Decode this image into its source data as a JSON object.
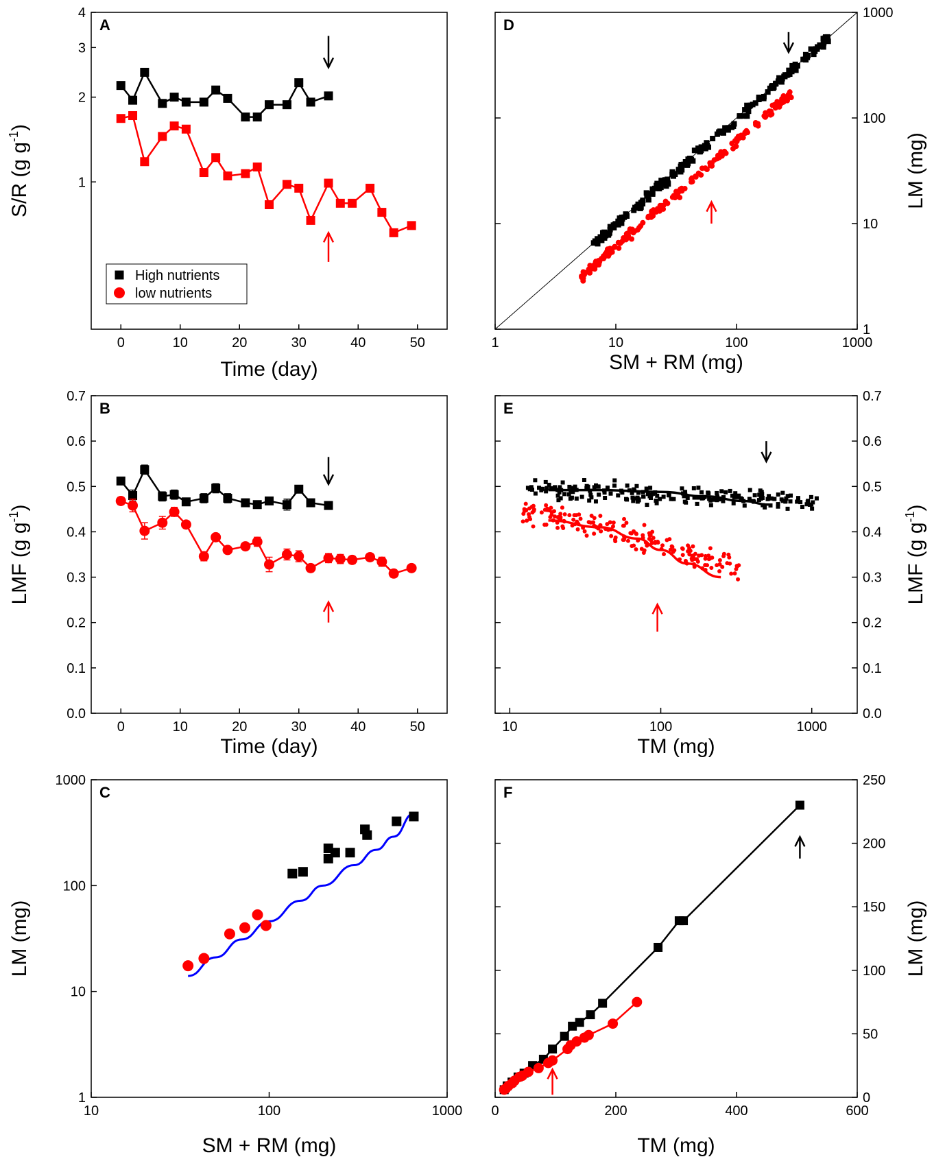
{
  "chart_data": [
    {
      "panel": "A",
      "type": "line",
      "xlabel": "Time (day)",
      "ylabel": "S/R (g g-1)",
      "xlim": [
        -5,
        55
      ],
      "ylim_log": [
        0.3,
        4
      ],
      "xticks": [
        0,
        10,
        20,
        30,
        40,
        50
      ],
      "yticks": [
        1,
        2,
        3,
        4
      ],
      "legend": {
        "position": "bottom-left",
        "entries": [
          "High nutrients",
          "low nutrients"
        ]
      },
      "series": [
        {
          "name": "High nutrients",
          "color": "#000000",
          "x": [
            0,
            2,
            4,
            7,
            9,
            11,
            14,
            16,
            18,
            21,
            23,
            25,
            28,
            30,
            32,
            35
          ],
          "y": [
            2.2,
            1.95,
            2.45,
            1.9,
            2.0,
            1.92,
            1.92,
            2.12,
            1.98,
            1.7,
            1.7,
            1.88,
            1.88,
            2.25,
            1.92,
            2.02
          ]
        },
        {
          "name": "low nutrients",
          "color": "#ff0000",
          "x": [
            0,
            2,
            4,
            7,
            9,
            11,
            14,
            16,
            18,
            21,
            23,
            25,
            28,
            30,
            32,
            35,
            37,
            39,
            42,
            44,
            46,
            49
          ],
          "y": [
            1.68,
            1.72,
            1.18,
            1.45,
            1.58,
            1.54,
            1.08,
            1.22,
            1.05,
            1.07,
            1.13,
            0.83,
            0.98,
            0.95,
            0.73,
            0.99,
            0.84,
            0.84,
            0.95,
            0.78,
            0.66,
            0.7
          ]
        }
      ],
      "arrows": [
        {
          "x": 35,
          "y_from": 3.3,
          "y_to": 2.55,
          "color": "#000000"
        },
        {
          "x": 35,
          "y_from": 0.52,
          "y_to": 0.66,
          "color": "#ff0000"
        }
      ]
    },
    {
      "panel": "B",
      "type": "line",
      "xlabel": "Time (day)",
      "ylabel": "LMF (g g-1)",
      "xlim": [
        -5,
        55
      ],
      "ylim": [
        0.0,
        0.7
      ],
      "xticks": [
        0,
        10,
        20,
        30,
        40,
        50
      ],
      "yticks": [
        0.0,
        0.1,
        0.2,
        0.3,
        0.4,
        0.5,
        0.6,
        0.7
      ],
      "series": [
        {
          "name": "High nutrients",
          "color": "#000000",
          "x": [
            0,
            2,
            4,
            7,
            9,
            11,
            14,
            16,
            18,
            21,
            23,
            25,
            28,
            30,
            32,
            35
          ],
          "y": [
            0.512,
            0.48,
            0.537,
            0.478,
            0.482,
            0.466,
            0.474,
            0.496,
            0.474,
            0.464,
            0.46,
            0.468,
            0.46,
            0.494,
            0.464,
            0.458
          ],
          "err": [
            0.006,
            0.012,
            0.01,
            0.01,
            0.01,
            0.006,
            0.01,
            0.01,
            0.01,
            0.004,
            0.004,
            0.004,
            0.012,
            0.006,
            0.004,
            0.006
          ]
        },
        {
          "name": "low nutrients",
          "color": "#ff0000",
          "x": [
            0,
            2,
            4,
            7,
            9,
            11,
            14,
            16,
            18,
            21,
            23,
            25,
            28,
            30,
            32,
            35,
            37,
            39,
            42,
            44,
            46,
            49
          ],
          "y": [
            0.468,
            0.458,
            0.402,
            0.42,
            0.444,
            0.416,
            0.346,
            0.388,
            0.36,
            0.368,
            0.378,
            0.328,
            0.35,
            0.346,
            0.32,
            0.342,
            0.34,
            0.338,
            0.344,
            0.334,
            0.308,
            0.32
          ],
          "err": [
            0.008,
            0.014,
            0.018,
            0.014,
            0.01,
            0.006,
            0.01,
            0.006,
            0.006,
            0.006,
            0.01,
            0.016,
            0.012,
            0.012,
            0.008,
            0.01,
            0.01,
            0.008,
            0.008,
            0.01,
            0.008,
            0.006
          ]
        }
      ],
      "arrows": [
        {
          "x": 35,
          "y_from": 0.565,
          "y_to": 0.505,
          "color": "#000000"
        },
        {
          "x": 35,
          "y_from": 0.2,
          "y_to": 0.245,
          "color": "#ff0000"
        }
      ]
    },
    {
      "panel": "C",
      "type": "scatter",
      "xlabel": "SM + RM (mg)",
      "ylabel": "LM (mg)",
      "xscale": "log",
      "yscale": "log",
      "xlim": [
        10,
        1000
      ],
      "ylim": [
        1,
        1000
      ],
      "xticks": [
        10,
        100,
        1000
      ],
      "yticks": [
        1,
        10,
        100,
        1000
      ],
      "series": [
        {
          "name": "High nutrients",
          "color": "#000000",
          "marker": "square",
          "x": [
            135,
            155,
            215,
            215,
            235,
            285,
            345,
            355,
            520,
            650
          ],
          "y": [
            130,
            135,
            225,
            180,
            205,
            205,
            340,
            300,
            405,
            450
          ]
        },
        {
          "name": "low nutrients",
          "color": "#ff0000",
          "marker": "circle",
          "x": [
            35,
            43,
            60,
            73,
            86,
            96
          ],
          "y": [
            17.5,
            20.5,
            35,
            40,
            53,
            42
          ]
        }
      ],
      "fit": {
        "color": "#0000ff",
        "x": [
          35,
          50,
          70,
          100,
          150,
          200,
          300,
          400,
          500,
          650
        ],
        "y": [
          14,
          21,
          31,
          46,
          72,
          100,
          156,
          218,
          290,
          480
        ]
      }
    },
    {
      "panel": "D",
      "type": "scatter",
      "xlabel": "SM + RM (mg)",
      "ylabel": "LM (mg)",
      "xscale": "log",
      "yscale": "log",
      "xlim": [
        1,
        1000
      ],
      "ylim": [
        1,
        1000
      ],
      "xticks": [
        1,
        10,
        100,
        1000
      ],
      "yticks": [
        1,
        10,
        100,
        1000
      ],
      "reference_line": "1:1",
      "arrows": [
        {
          "x": 270,
          "y_from": 650,
          "y_to": 420,
          "color": "#000000"
        },
        {
          "x": 62,
          "y_from": 10,
          "y_to": 16,
          "color": "#ff0000"
        }
      ]
    },
    {
      "panel": "E",
      "type": "scatter",
      "xlabel": "TM (mg)",
      "ylabel": "LMF (g g-1)",
      "xscale": "log",
      "xlim": [
        8,
        2000
      ],
      "ylim": [
        0.0,
        0.7
      ],
      "xticks": [
        10,
        100,
        1000
      ],
      "yticks": [
        0.0,
        0.1,
        0.2,
        0.3,
        0.4,
        0.5,
        0.6,
        0.7
      ],
      "trend_lines": [
        {
          "name": "High nutrients",
          "color": "#000000",
          "x": [
            18,
            40,
            100,
            200,
            350,
            520
          ],
          "y": [
            0.492,
            0.492,
            0.488,
            0.478,
            0.468,
            0.46
          ]
        },
        {
          "name": "low nutrients",
          "color": "#ff0000",
          "x": [
            18,
            40,
            70,
            100,
            150,
            250
          ],
          "y": [
            0.425,
            0.41,
            0.385,
            0.36,
            0.33,
            0.3
          ]
        }
      ],
      "arrows": [
        {
          "x": 500,
          "y_from": 0.6,
          "y_to": 0.555,
          "color": "#000000"
        },
        {
          "x": 95,
          "y_from": 0.18,
          "y_to": 0.24,
          "color": "#ff0000"
        }
      ]
    },
    {
      "panel": "F",
      "type": "line",
      "xlabel": "TM (mg)",
      "ylabel": "LM (mg)",
      "xlim": [
        0,
        600
      ],
      "ylim": [
        0,
        250
      ],
      "xticks": [
        0,
        200,
        400,
        600
      ],
      "yticks": [
        0,
        50,
        100,
        150,
        200,
        250
      ],
      "series": [
        {
          "name": "High nutrients",
          "color": "#000000",
          "marker": "square",
          "x": [
            15,
            20,
            28,
            38,
            48,
            62,
            80,
            95,
            115,
            128,
            140,
            158,
            178,
            270,
            305,
            312,
            505
          ],
          "y": [
            6,
            9,
            12,
            16,
            19,
            25,
            30,
            38,
            48,
            56,
            59,
            65,
            74,
            118,
            139,
            139,
            230
          ]
        },
        {
          "name": "low nutrients",
          "color": "#ff0000",
          "marker": "circle",
          "x": [
            15,
            18,
            22,
            28,
            32,
            40,
            45,
            55,
            72,
            88,
            95,
            120,
            125,
            135,
            148,
            155,
            195,
            235
          ],
          "y": [
            6,
            7,
            9,
            11,
            13,
            16,
            17,
            20,
            23,
            27,
            29,
            38,
            41,
            44,
            47,
            49,
            58,
            75
          ]
        }
      ],
      "arrows": [
        {
          "x": 505,
          "y_from": 188,
          "y_to": 205,
          "color": "#000000"
        },
        {
          "x": 95,
          "y_from": 2,
          "y_to": 22,
          "color": "#ff0000"
        }
      ]
    }
  ]
}
